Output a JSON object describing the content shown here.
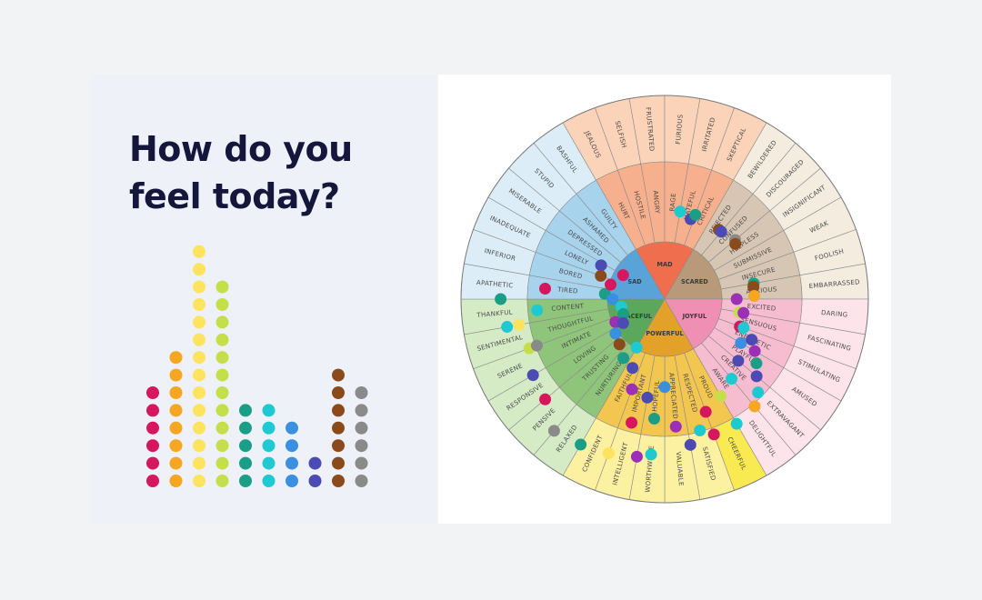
{
  "title_lines": [
    "How do you",
    "feel today?"
  ],
  "palette": {
    "magenta": "#d6175f",
    "orange": "#f5a623",
    "yellow": "#fde35e",
    "lime": "#c5df4a",
    "teal": "#1b9e86",
    "cyan": "#1fc9d1",
    "blue": "#3a8fe0",
    "indigo": "#4b4bb3",
    "brown": "#8b4a1c",
    "gray": "#8a8a8a"
  },
  "dot_columns": [
    {
      "color": "magenta",
      "count": 6
    },
    {
      "color": "orange",
      "count": 8
    },
    {
      "color": "yellow",
      "count": 14
    },
    {
      "color": "lime",
      "count": 12
    },
    {
      "color": "teal",
      "count": 5
    },
    {
      "color": "cyan",
      "count": 5
    },
    {
      "color": "blue",
      "count": 4
    },
    {
      "color": "indigo",
      "count": 2
    },
    {
      "color": "brown",
      "count": 7
    },
    {
      "color": "gray",
      "count": 6
    }
  ],
  "wheel": {
    "core": [
      {
        "label": "MAD",
        "color": "#ef6e4d"
      },
      {
        "label": "SCARED",
        "color": "#b89a7a"
      },
      {
        "label": "JOYFUL",
        "color": "#ef8fb3"
      },
      {
        "label": "POWERFUL",
        "color": "#e3a12a"
      },
      {
        "label": "PEACEFUL",
        "color": "#5ba85c"
      },
      {
        "label": "SAD",
        "color": "#5aa3d8"
      }
    ],
    "middle": [
      {
        "label": "HURT",
        "color": "#f7b08e"
      },
      {
        "label": "HOSTILE",
        "color": "#f7b08e"
      },
      {
        "label": "ANGRY",
        "color": "#f7b08e"
      },
      {
        "label": "RAGE",
        "color": "#f7b08e"
      },
      {
        "label": "HATEFUL",
        "color": "#f7b08e"
      },
      {
        "label": "CRITICAL",
        "color": "#f7b08e"
      },
      {
        "label": "REJECTED",
        "color": "#d7c6b3"
      },
      {
        "label": "CONFUSED",
        "color": "#d7c6b3"
      },
      {
        "label": "HELPLESS",
        "color": "#d7c6b3"
      },
      {
        "label": "SUBMISSIVE",
        "color": "#d7c6b3"
      },
      {
        "label": "INSECURE",
        "color": "#d7c6b3"
      },
      {
        "label": "ANXIOUS",
        "color": "#d7c6b3"
      },
      {
        "label": "EXCITED",
        "color": "#f6bccf"
      },
      {
        "label": "SENSUOUS",
        "color": "#f6bccf"
      },
      {
        "label": "ENERGETIC",
        "color": "#f6bccf"
      },
      {
        "label": "PLAYFUL",
        "color": "#f6bccf"
      },
      {
        "label": "CREATIVE",
        "color": "#f6bccf"
      },
      {
        "label": "AWARE",
        "color": "#f6bccf"
      },
      {
        "label": "PROUD",
        "color": "#f2c64f"
      },
      {
        "label": "RESPECTED",
        "color": "#f2c64f"
      },
      {
        "label": "APPRECIATED",
        "color": "#f2c64f"
      },
      {
        "label": "HOPEFUL",
        "color": "#f2c64f"
      },
      {
        "label": "IMPORTANT",
        "color": "#f2c64f"
      },
      {
        "label": "FAITHFUL",
        "color": "#f2c64f"
      },
      {
        "label": "NURTURING",
        "color": "#8fc57a"
      },
      {
        "label": "TRUSTING",
        "color": "#8fc57a"
      },
      {
        "label": "LOVING",
        "color": "#8fc57a"
      },
      {
        "label": "INTIMATE",
        "color": "#8fc57a"
      },
      {
        "label": "THOUGHTFUL",
        "color": "#8fc57a"
      },
      {
        "label": "CONTENT",
        "color": "#8fc57a"
      },
      {
        "label": "TIRED",
        "color": "#a8d3ec"
      },
      {
        "label": "BORED",
        "color": "#a8d3ec"
      },
      {
        "label": "LONELY",
        "color": "#a8d3ec"
      },
      {
        "label": "DEPRESSED",
        "color": "#a8d3ec"
      },
      {
        "label": "ASHAMED",
        "color": "#a8d3ec"
      },
      {
        "label": "GUILTY",
        "color": "#a8d3ec"
      }
    ],
    "outer": [
      {
        "label": "JEALOUS",
        "color": "#fbd3b8"
      },
      {
        "label": "SELFISH",
        "color": "#fbd3b8"
      },
      {
        "label": "FRUSTRATED",
        "color": "#fbd3b8"
      },
      {
        "label": "FURIOUS",
        "color": "#fbd3b8"
      },
      {
        "label": "IRRITATED",
        "color": "#fbd3b8"
      },
      {
        "label": "SKEPTICAL",
        "color": "#fbd3b8"
      },
      {
        "label": "BEWILDERED",
        "color": "#f3ecdf"
      },
      {
        "label": "DISCOURAGED",
        "color": "#f3ecdf"
      },
      {
        "label": "INSIGNIFICANT",
        "color": "#f3ecdf"
      },
      {
        "label": "WEAK",
        "color": "#f3ecdf"
      },
      {
        "label": "FOOLISH",
        "color": "#f3ecdf"
      },
      {
        "label": "EMBARRASSED",
        "color": "#f3ecdf"
      },
      {
        "label": "DARING",
        "color": "#fde3ea"
      },
      {
        "label": "FASCINATING",
        "color": "#fde3ea"
      },
      {
        "label": "STIMULATING",
        "color": "#fde3ea"
      },
      {
        "label": "AMUSED",
        "color": "#fde3ea"
      },
      {
        "label": "EXTRAVAGANT",
        "color": "#fde3ea"
      },
      {
        "label": "DELIGHTFUL",
        "color": "#fde3ea"
      },
      {
        "label": "CHEERFUL",
        "color": "#f9ea52"
      },
      {
        "label": "SATISFIED",
        "color": "#fbf1a0"
      },
      {
        "label": "VALUABLE",
        "color": "#fbf1a0"
      },
      {
        "label": "WORTHWHILE",
        "color": "#fbf1a0"
      },
      {
        "label": "INTELLIGENT",
        "color": "#fbf1a0"
      },
      {
        "label": "CONFIDENT",
        "color": "#fbf1a0"
      },
      {
        "label": "RELAXED",
        "color": "#d5ebc6"
      },
      {
        "label": "PENSIVE",
        "color": "#d5ebc6"
      },
      {
        "label": "RESPONSIVE",
        "color": "#d5ebc6"
      },
      {
        "label": "SERENE",
        "color": "#d5ebc6"
      },
      {
        "label": "SENTIMENTAL",
        "color": "#d5ebc6"
      },
      {
        "label": "THANKFUL",
        "color": "#d5ebc6"
      },
      {
        "label": "APATHETIC",
        "color": "#dcedf7"
      },
      {
        "label": "INFERIOR",
        "color": "#dcedf7"
      },
      {
        "label": "INADEQUATE",
        "color": "#dcedf7"
      },
      {
        "label": "MISERABLE",
        "color": "#dcedf7"
      },
      {
        "label": "STUPID",
        "color": "#dcedf7"
      },
      {
        "label": "BASHFUL",
        "color": "#dcedf7"
      }
    ]
  }
}
